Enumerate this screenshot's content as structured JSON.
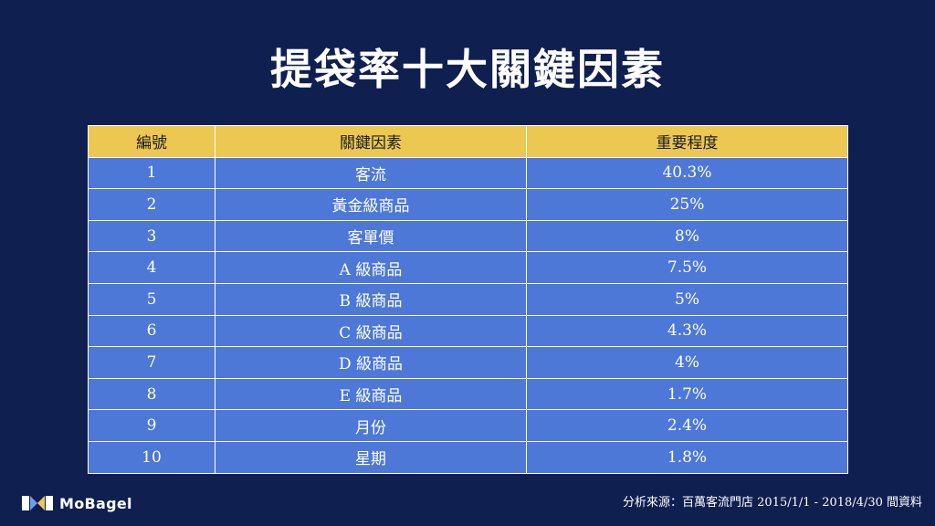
{
  "title": "提袋率十大關鍵因素",
  "table": {
    "headers": [
      "編號",
      "關鍵因素",
      "重要程度"
    ],
    "rows": [
      [
        "1",
        "客流",
        "40.3%"
      ],
      [
        "2",
        "黃金級商品",
        "25%"
      ],
      [
        "3",
        "客單價",
        "8%"
      ],
      [
        "4",
        "A 級商品",
        "7.5%"
      ],
      [
        "5",
        "B 級商品",
        "5%"
      ],
      [
        "6",
        "C 級商品",
        "4.3%"
      ],
      [
        "7",
        "D 級商品",
        "4%"
      ],
      [
        "8",
        "E 級商品",
        "1.7%"
      ],
      [
        "9",
        "月份",
        "2.4%"
      ],
      [
        "10",
        "星期",
        "1.8%"
      ]
    ]
  },
  "brand": {
    "name": "MoBagel",
    "logo_icon": "mobagel-logo-icon"
  },
  "footnote": "分析來源：百萬客流門店 2015/1/1 - 2018/4/30 間資料",
  "colors": {
    "background": "#0f1f4f",
    "header_fill": "#ecc852",
    "row_fill": "#4d78d8",
    "text": "#ffffff"
  }
}
